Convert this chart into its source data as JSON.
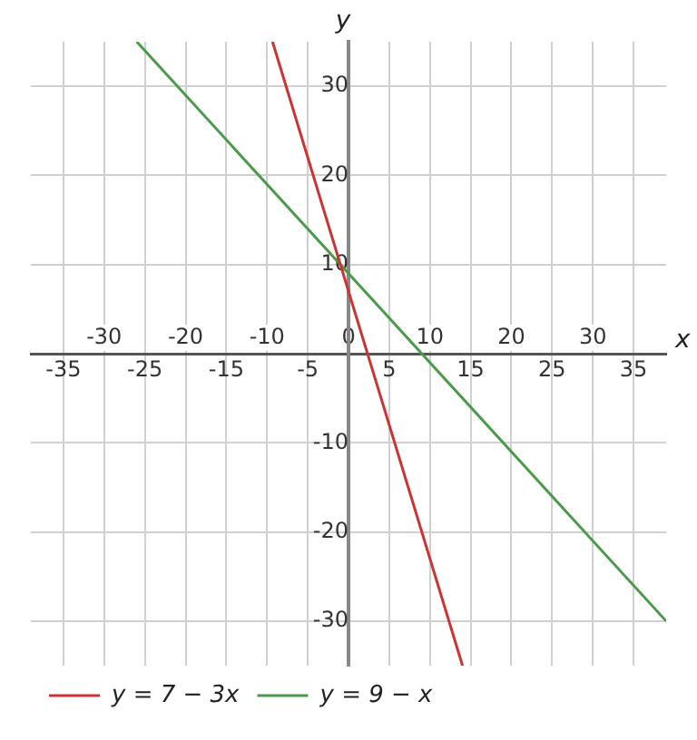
{
  "chart_data": {
    "type": "line",
    "xlabel": "x",
    "ylabel": "y",
    "xlim": [
      -39,
      39
    ],
    "ylim": [
      -35,
      35
    ],
    "xticks": [
      -35,
      -25,
      -15,
      -5,
      5,
      15,
      25,
      35
    ],
    "x2lim": [
      -39,
      39
    ],
    "x2ticks": [
      -30,
      -20,
      -10,
      0,
      10,
      20,
      30
    ],
    "yticks": [
      -30,
      -20,
      -10,
      10,
      20,
      30
    ],
    "grid": true,
    "legend": "bottom left",
    "series": [
      {
        "name": "y = 7 − 3x",
        "color": "#cc3333",
        "x": [
          -9.33,
          14
        ],
        "values": [
          35,
          -35
        ]
      },
      {
        "name": "y = 9 − x",
        "color": "#4a9a4a",
        "x": [
          -26,
          39
        ],
        "values": [
          35,
          -30
        ]
      }
    ]
  }
}
